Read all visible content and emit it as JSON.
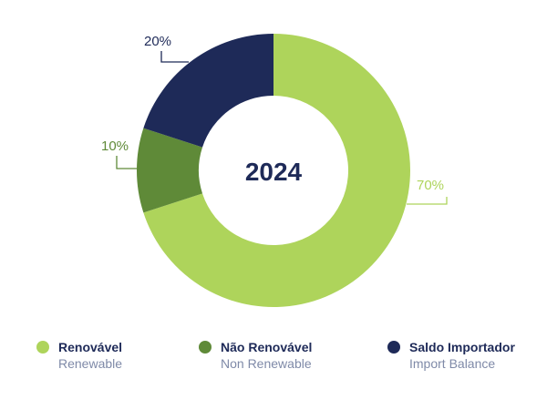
{
  "chart_data": {
    "type": "pie",
    "title": "",
    "center_label": "2024",
    "categories": [
      "Renovável",
      "Não Renovável",
      "Saldo Importador"
    ],
    "values": [
      70,
      10,
      20
    ],
    "value_labels": [
      "70%",
      "10%",
      "20%"
    ],
    "colors": [
      "#aed45b",
      "#5f8a38",
      "#1e2a58"
    ],
    "legend_position": "bottom",
    "legend": [
      {
        "label": "Renovável",
        "sublabel": "Renewable",
        "color": "#aed45b"
      },
      {
        "label": "Não Renovável",
        "sublabel": "Non Renewable",
        "color": "#5f8a38"
      },
      {
        "label": "Saldo Importador",
        "sublabel": "Import Balance",
        "color": "#1e2a58"
      }
    ]
  }
}
